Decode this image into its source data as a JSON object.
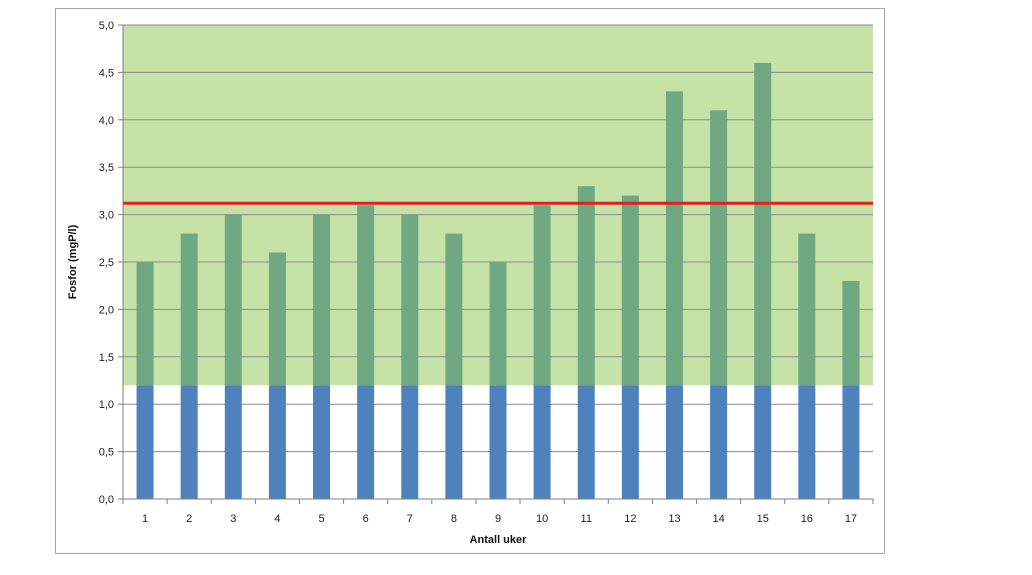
{
  "chart_data": {
    "type": "bar",
    "title": "",
    "xlabel": "Antall uker",
    "ylabel": "Fosfor (mgP/l)",
    "categories": [
      "1",
      "2",
      "3",
      "4",
      "5",
      "6",
      "7",
      "8",
      "9",
      "10",
      "11",
      "12",
      "13",
      "14",
      "15",
      "16",
      "17"
    ],
    "values": [
      2.5,
      2.8,
      3.0,
      2.6,
      3.0,
      3.1,
      3.0,
      2.8,
      2.5,
      3.1,
      3.3,
      3.2,
      4.3,
      4.1,
      4.6,
      2.8,
      2.3
    ],
    "ylim": [
      0,
      5
    ],
    "yticks": [
      "0,0",
      "0,5",
      "1,0",
      "1,5",
      "2,0",
      "2,5",
      "3,0",
      "3,5",
      "4,0",
      "4,5",
      "5,0"
    ],
    "grid": true,
    "legend": "none",
    "green_band_range": [
      1.2,
      5.0
    ],
    "reference_line": 3.12,
    "colors": {
      "bar_below_band": "#4f81bd",
      "bar_in_band": "#6fa882",
      "band": "#c6e2a6",
      "reference_line": "#e02020",
      "grid": "#8c8c8c"
    }
  }
}
